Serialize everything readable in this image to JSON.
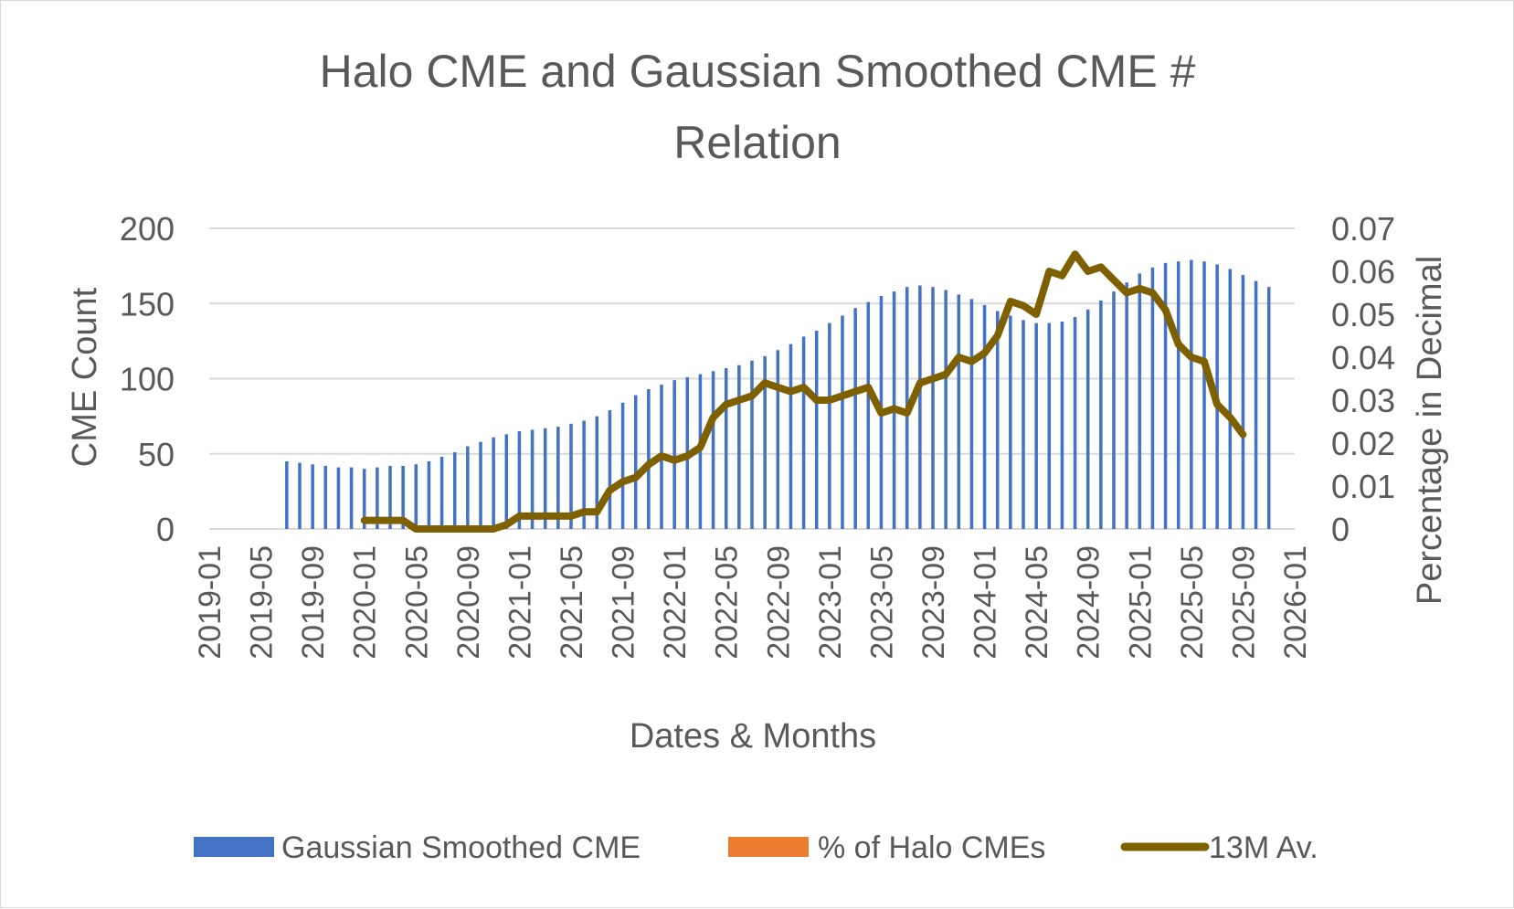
{
  "chart_data": {
    "type": "bar+line",
    "title_lines": [
      "Halo CME and Gaussian Smoothed CME #",
      "Relation"
    ],
    "xlabel": "Dates & Months",
    "ylabel_left": "CME Count",
    "ylabel_right": "Percentage in Decimal",
    "x_ticks": [
      "2019-01",
      "2019-05",
      "2019-09",
      "2020-01",
      "2020-05",
      "2020-09",
      "2021-01",
      "2021-05",
      "2021-09",
      "2022-01",
      "2022-05",
      "2022-09",
      "2023-01",
      "2023-05",
      "2023-09",
      "2024-01",
      "2024-05",
      "2024-09",
      "2025-01",
      "2025-05",
      "2025-09",
      "2026-01"
    ],
    "y_left_ticks": [
      "0",
      "50",
      "100",
      "150",
      "200"
    ],
    "y_left_range": [
      0,
      200
    ],
    "y_right_ticks": [
      "0",
      "0.01",
      "0.02",
      "0.03",
      "0.04",
      "0.05",
      "0.06",
      "0.07"
    ],
    "y_right_range": [
      0,
      0.07
    ],
    "x_range": [
      "2019-01",
      "2026-01"
    ],
    "legend": [
      {
        "label": "Gaussian Smoothed CME",
        "color": "#4472c4",
        "kind": "bar"
      },
      {
        "label": "% of Halo CMEs",
        "color": "#ed7d31",
        "kind": "bar"
      },
      {
        "label": "13M Av.",
        "color": "#7f6000",
        "kind": "line"
      }
    ],
    "series": [
      {
        "name": "Gaussian Smoothed CME",
        "kind": "bar",
        "axis": "left",
        "color": "#4472c4",
        "start": "2019-07",
        "values": [
          45,
          44,
          43,
          42,
          41,
          41,
          40,
          41,
          42,
          42,
          43,
          45,
          48,
          51,
          55,
          58,
          61,
          63,
          65,
          66,
          67,
          68,
          70,
          72,
          75,
          79,
          84,
          89,
          93,
          96,
          99,
          101,
          103,
          105,
          107,
          109,
          112,
          115,
          119,
          123,
          128,
          132,
          137,
          142,
          147,
          151,
          155,
          158,
          161,
          162,
          161,
          159,
          156,
          153,
          149,
          145,
          142,
          139,
          137,
          137,
          138,
          141,
          146,
          152,
          158,
          164,
          170,
          174,
          177,
          178,
          179,
          178,
          176,
          173,
          169,
          165,
          161
        ]
      },
      {
        "name": "% of Halo CMEs",
        "kind": "bar",
        "axis": "right",
        "color": "#ed7d31",
        "values": []
      },
      {
        "name": "13M Av.",
        "kind": "line",
        "axis": "right",
        "color": "#7f6000",
        "start": "2020-01",
        "values": [
          0.002,
          0.002,
          0.002,
          0.002,
          0.0,
          0.0,
          0.0,
          0.0,
          0.0,
          0.0,
          0.0,
          0.001,
          0.003,
          0.003,
          0.003,
          0.003,
          0.003,
          0.004,
          0.004,
          0.009,
          0.011,
          0.012,
          0.015,
          0.017,
          0.016,
          0.017,
          0.019,
          0.026,
          0.029,
          0.03,
          0.031,
          0.034,
          0.033,
          0.032,
          0.033,
          0.03,
          0.03,
          0.031,
          0.032,
          0.033,
          0.027,
          0.028,
          0.027,
          0.034,
          0.035,
          0.036,
          0.04,
          0.039,
          0.041,
          0.045,
          0.053,
          0.052,
          0.05,
          0.06,
          0.059,
          0.064,
          0.06,
          0.061,
          0.058,
          0.055,
          0.056,
          0.055,
          0.051,
          0.043,
          0.04,
          0.039,
          0.029,
          0.026,
          0.022
        ]
      }
    ]
  }
}
